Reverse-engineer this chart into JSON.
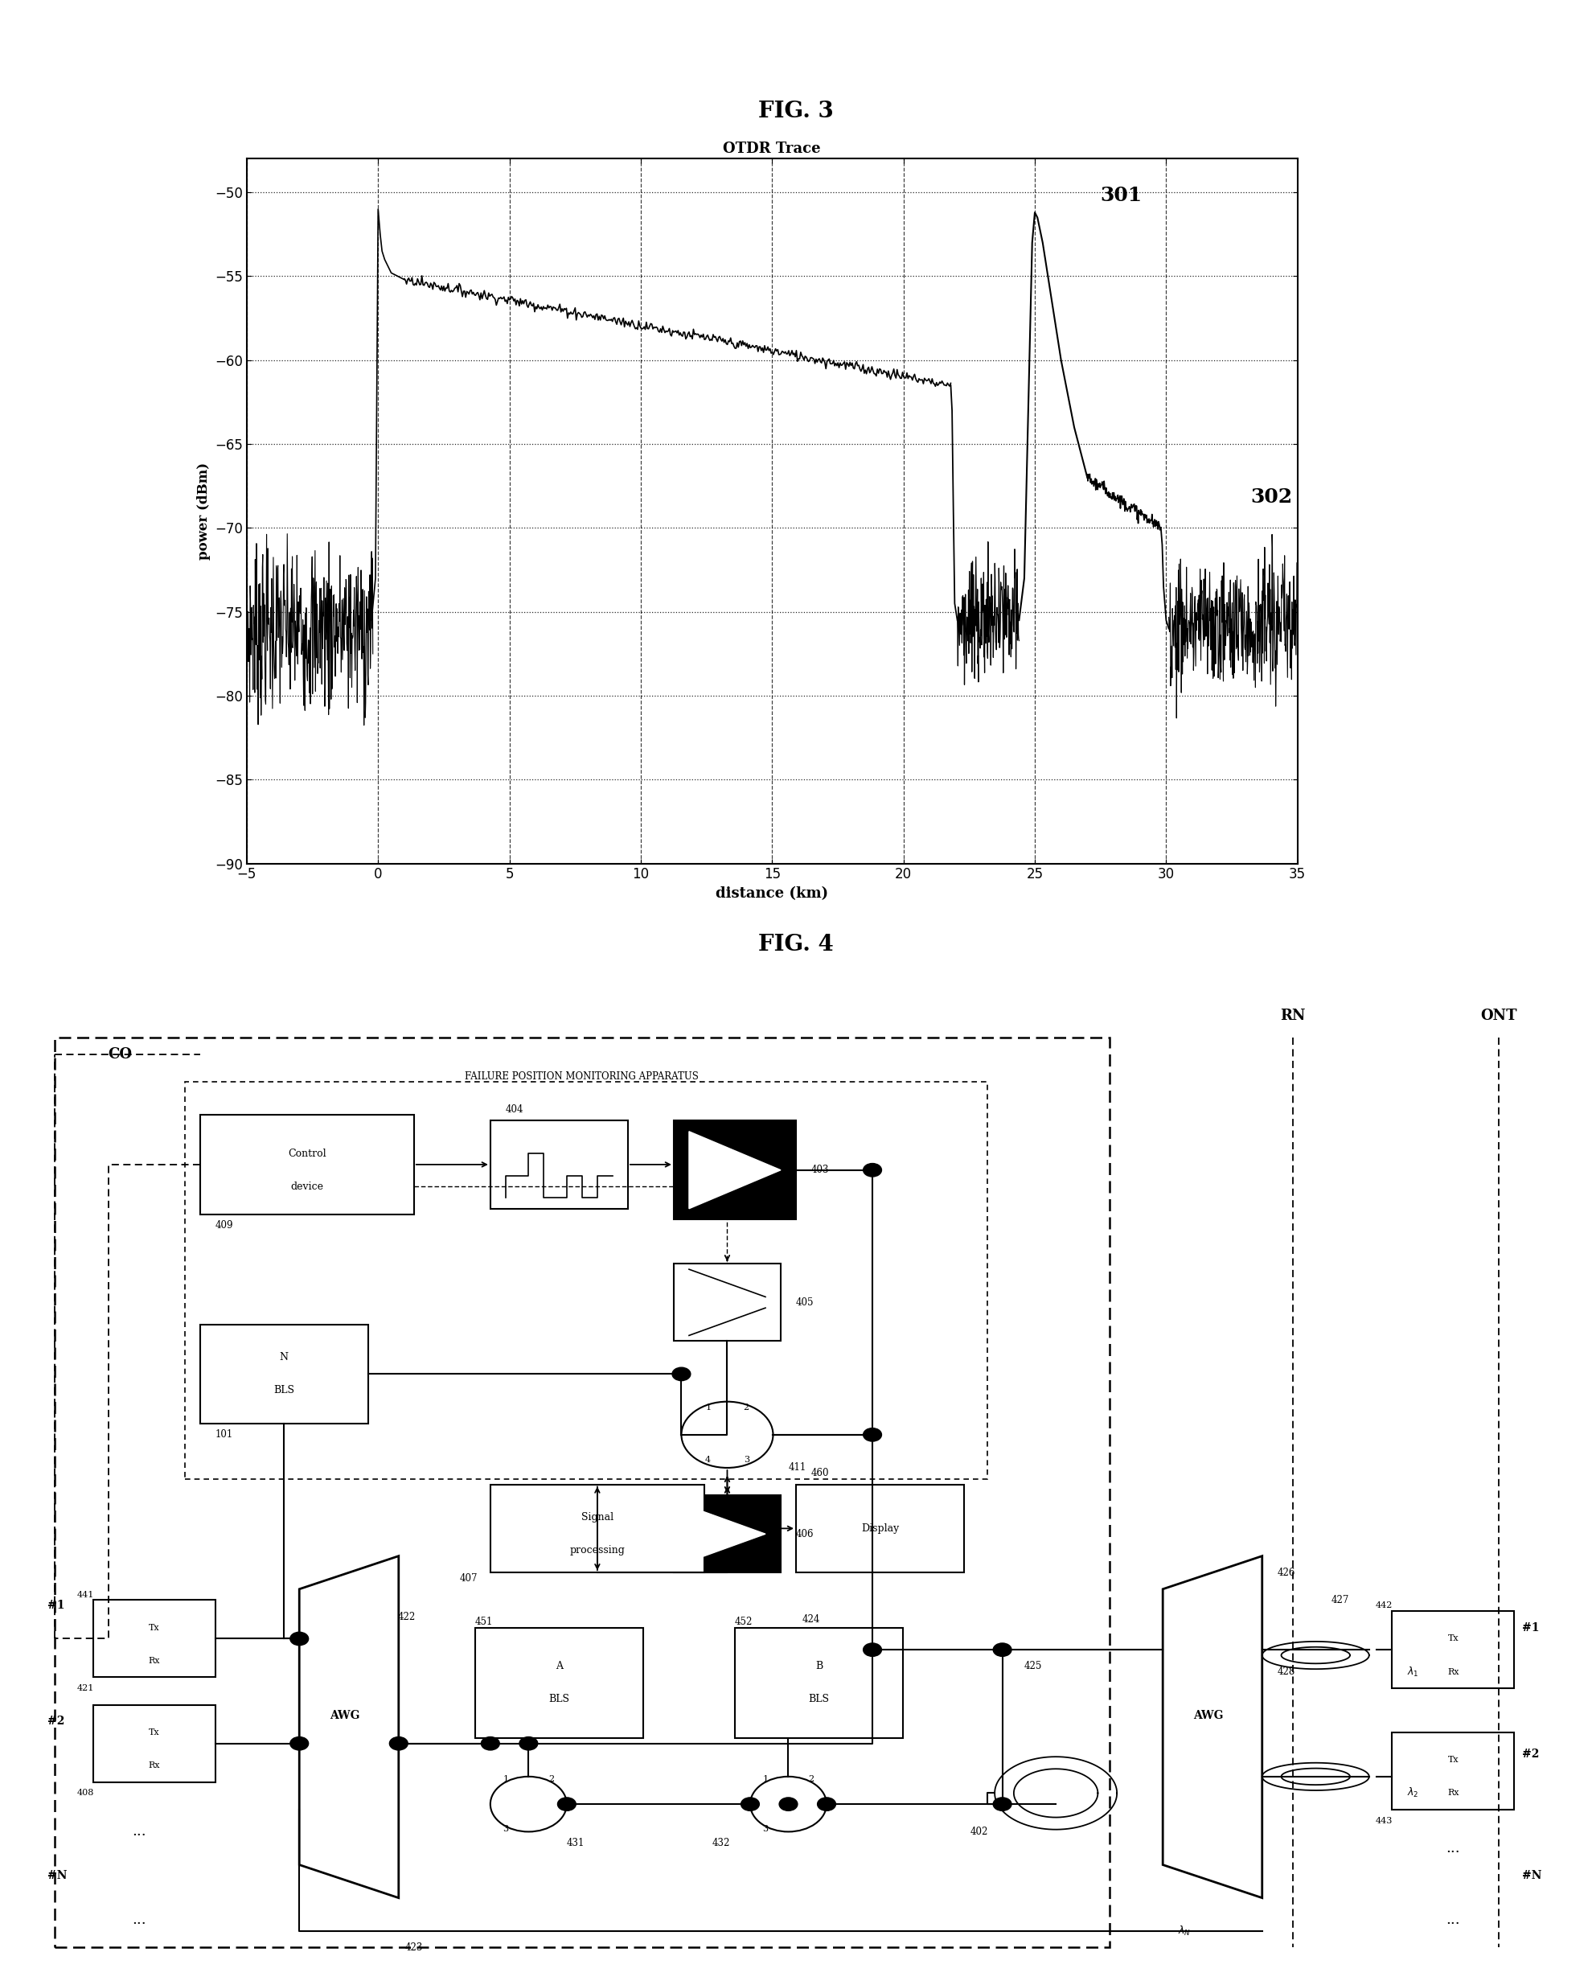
{
  "fig3_title": "FIG. 3",
  "fig3_subtitle": "OTDR Trace",
  "fig3_xlabel": "distance (km)",
  "fig3_ylabel": "power (dBm)",
  "fig3_xlim": [
    -5,
    35
  ],
  "fig3_ylim": [
    -90,
    -48
  ],
  "fig3_xticks": [
    -5,
    0,
    5,
    10,
    15,
    20,
    25,
    30,
    35
  ],
  "fig3_yticks": [
    -90,
    -85,
    -80,
    -75,
    -70,
    -65,
    -60,
    -55,
    -50
  ],
  "fig4_title": "FIG. 4"
}
